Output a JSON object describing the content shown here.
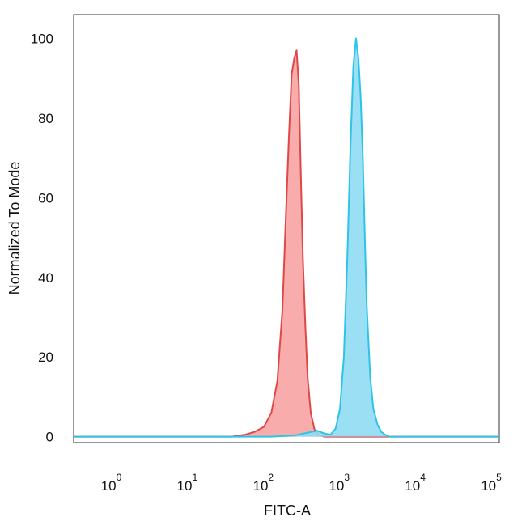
{
  "chart_data": {
    "type": "area",
    "xlabel": "FITC-A",
    "ylabel": "Normalized To Mode",
    "x_scale": "log",
    "xlim": [
      0.25,
      100000
    ],
    "ylim": [
      -1.5,
      106
    ],
    "x_ticks": [
      {
        "value": 1,
        "base": "10",
        "exp": "0"
      },
      {
        "value": 10,
        "base": "10",
        "exp": "1"
      },
      {
        "value": 100,
        "base": "10",
        "exp": "2"
      },
      {
        "value": 1000,
        "base": "10",
        "exp": "3"
      },
      {
        "value": 10000,
        "base": "10",
        "exp": "4"
      },
      {
        "value": 100000,
        "base": "10",
        "exp": "5"
      }
    ],
    "y_ticks": [
      {
        "value": 0,
        "label": "0"
      },
      {
        "value": 20,
        "label": "20"
      },
      {
        "value": 40,
        "label": "40"
      },
      {
        "value": 60,
        "label": "60"
      },
      {
        "value": 80,
        "label": "80"
      },
      {
        "value": 100,
        "label": "100"
      }
    ],
    "grid": false,
    "legend": "none",
    "series": [
      {
        "color": "#e04848",
        "fill": "#f7a3a3",
        "x": [
          0.25,
          30,
          45,
          60,
          80,
          100,
          120,
          140,
          155,
          170,
          185,
          200,
          215,
          230,
          245,
          260,
          280,
          300,
          330,
          370,
          420,
          500,
          700,
          1000,
          3000,
          100000
        ],
        "y": [
          0,
          0,
          0.5,
          1.2,
          2.5,
          6,
          14,
          32,
          55,
          75,
          91,
          95,
          97,
          88,
          65,
          45,
          28,
          15,
          6,
          1.8,
          0.4,
          0,
          0,
          0,
          0,
          0
        ]
      },
      {
        "color": "#2ec4e6",
        "fill": "#8fdcf3",
        "x": [
          0.25,
          100,
          200,
          300,
          400,
          500,
          600,
          700,
          800,
          900,
          1000,
          1100,
          1200,
          1300,
          1400,
          1500,
          1600,
          1700,
          1800,
          2000,
          2200,
          2500,
          2800,
          3200,
          3600,
          4200,
          5000,
          10000,
          100000
        ],
        "y": [
          0,
          0,
          0.3,
          1,
          1.5,
          0.8,
          0.5,
          2,
          7,
          20,
          45,
          73,
          93,
          100,
          95,
          85,
          70,
          50,
          33,
          15,
          7,
          3,
          1.2,
          0.4,
          0,
          0,
          0,
          0,
          0
        ]
      }
    ]
  }
}
